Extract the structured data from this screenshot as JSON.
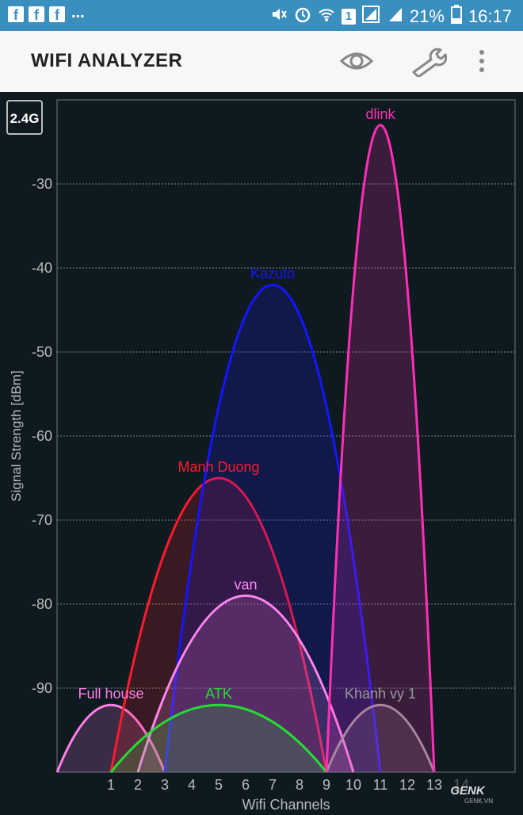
{
  "status_bar": {
    "notification_icons": [
      "facebook-icon",
      "facebook-icon",
      "facebook-icon"
    ],
    "more_notifications": "...",
    "sim_badge": "1",
    "battery": "21%",
    "time": "16:17"
  },
  "app_bar": {
    "title": "WIFI ANALYZER",
    "actions": [
      "eye-icon",
      "wrench-icon",
      "overflow-menu-icon"
    ]
  },
  "band_button": "2.4G",
  "chart_data": {
    "type": "area",
    "ylabel": "Signal Strength [dBm]",
    "xlabel": "Wifi Channels",
    "xlim": [
      -1,
      16
    ],
    "ylim": [
      -100,
      -20
    ],
    "yticks": [
      -30,
      -40,
      -50,
      -60,
      -70,
      -80,
      -90
    ],
    "xticks": [
      1,
      2,
      3,
      4,
      5,
      6,
      7,
      8,
      9,
      10,
      11,
      12,
      13,
      14
    ],
    "grid": true,
    "series": [
      {
        "name": "Full house",
        "channel": 1,
        "start": -1,
        "end": 3,
        "peak": -92,
        "color": "#ff7fe8"
      },
      {
        "name": "Manh Duong",
        "channel": 5,
        "start": 1,
        "end": 9,
        "peak": -65,
        "color": "#ff1a2e"
      },
      {
        "name": "Kazuto",
        "channel": 7,
        "start": 3,
        "end": 11,
        "peak": -42,
        "color": "#1515ff"
      },
      {
        "name": "van",
        "channel": 6,
        "start": 2,
        "end": 10,
        "peak": -79,
        "color": "#ff86f0"
      },
      {
        "name": "ATK",
        "channel": 5,
        "start": 1,
        "end": 9,
        "peak": -92,
        "color": "#22dd33"
      },
      {
        "name": "Khanh vy 1",
        "channel": 11,
        "start": 9,
        "end": 13,
        "peak": -92,
        "color": "#999999"
      },
      {
        "name": "dlink",
        "channel": 11,
        "start": 9,
        "end": 13,
        "peak": -23,
        "color": "#ff2fb5"
      }
    ]
  },
  "watermark": {
    "brand": "GENK",
    "site": "GENK.VN"
  }
}
